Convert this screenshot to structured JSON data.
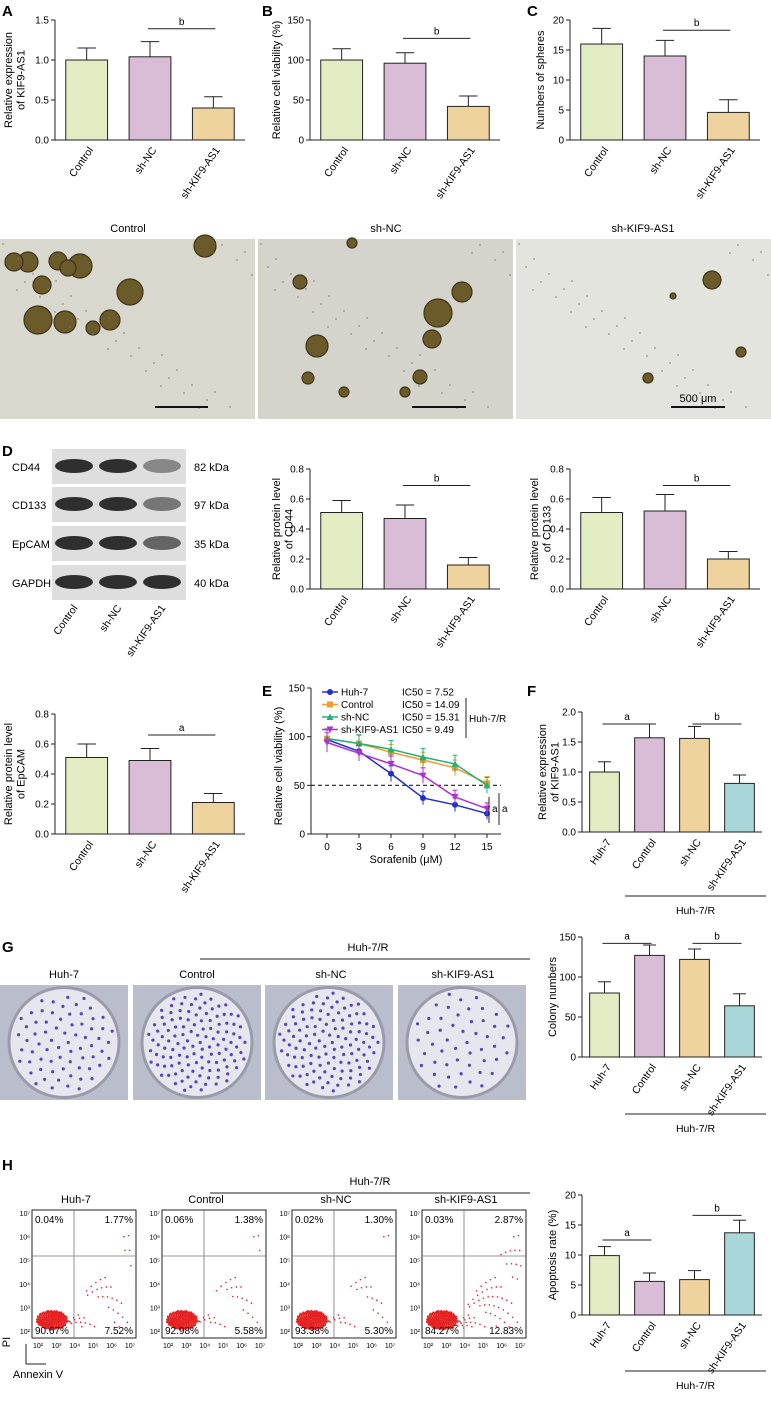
{
  "colors": {
    "green": "#e3ecc3",
    "purple": "#d9bcd6",
    "tan": "#efd39f",
    "teal": "#a9d6d9",
    "axis": "#222222",
    "dot_red": "#e52020",
    "colony_purple": "#5a3fc0"
  },
  "panels": {
    "A": "A",
    "B": "B",
    "C": "C",
    "D": "D",
    "E": "E",
    "F": "F",
    "G": "G",
    "H": "H"
  },
  "sphere_images": {
    "labels": [
      "Control",
      "sh-NC",
      "sh-KIF9-AS1"
    ],
    "scale_bar": "500 μm"
  },
  "western_blot": {
    "bands": [
      {
        "name": "CD44",
        "kda": "82 kDa"
      },
      {
        "name": "CD133",
        "kda": "97 kDa"
      },
      {
        "name": "EpCAM",
        "kda": "35 kDa"
      },
      {
        "name": "GAPDH",
        "kda": "40 kDa"
      }
    ],
    "lanes": [
      "Control",
      "sh-NC",
      "sh-KIF9-AS1"
    ]
  },
  "colony_images": {
    "group_label": "Huh-7/R",
    "labels": [
      "Huh-7",
      "Control",
      "sh-NC",
      "sh-KIF9-AS1"
    ]
  },
  "flow": {
    "group_label": "Huh-7/R",
    "x_label": "Annexin V",
    "y_label": "PI",
    "titles": [
      "Huh-7",
      "Control",
      "sh-NC",
      "sh-KIF9-AS1"
    ],
    "quadrants": [
      {
        "ul": "0.04%",
        "ur": "1.77%",
        "ll": "90.67%",
        "lr": "7.52%"
      },
      {
        "ul": "0.06%",
        "ur": "1.38%",
        "ll": "92.98%",
        "lr": "5.58%"
      },
      {
        "ul": "0.02%",
        "ur": "1.30%",
        "ll": "93.38%",
        "lr": "5.30%"
      },
      {
        "ul": "0.03%",
        "ur": "2.87%",
        "ll": "84.27%",
        "lr": "12.83%"
      }
    ],
    "ticks": [
      "10²",
      "10³",
      "10⁴",
      "10⁵",
      "10⁶",
      "10⁷"
    ]
  },
  "chart_data": [
    {
      "id": "A",
      "type": "bar",
      "categories": [
        "Control",
        "sh-NC",
        "sh-KIF9-AS1"
      ],
      "values": [
        1.0,
        1.04,
        0.4
      ],
      "errors": [
        0.15,
        0.19,
        0.14
      ],
      "colors": [
        "#e3ecc3",
        "#d9bcd6",
        "#efd39f"
      ],
      "ylabel": "Relative expression of KIF9-AS1",
      "ylim": [
        0,
        1.5
      ],
      "ticks": [
        "0.0",
        "0.5",
        "1.0",
        "1.5"
      ],
      "tick_values": [
        0,
        0.5,
        1.0,
        1.5
      ],
      "sig": [
        {
          "from": 1,
          "to": 2,
          "label": "b",
          "y": 1.39
        }
      ]
    },
    {
      "id": "B",
      "type": "bar",
      "categories": [
        "Control",
        "sh-NC",
        "sh-KIF9-AS1"
      ],
      "values": [
        100,
        96,
        42
      ],
      "errors": [
        14,
        13,
        13
      ],
      "colors": [
        "#e3ecc3",
        "#d9bcd6",
        "#efd39f"
      ],
      "ylabel": "Relative cell viability (%)",
      "ylim": [
        0,
        150
      ],
      "ticks": [
        "0",
        "50",
        "100",
        "150"
      ],
      "tick_values": [
        0,
        50,
        100,
        150
      ],
      "sig": [
        {
          "from": 1,
          "to": 2,
          "label": "b",
          "y": 127
        }
      ]
    },
    {
      "id": "C",
      "type": "bar",
      "categories": [
        "Control",
        "sh-NC",
        "sh-KIF9-AS1"
      ],
      "values": [
        16,
        14,
        4.6
      ],
      "errors": [
        2.6,
        2.6,
        2.1
      ],
      "colors": [
        "#e3ecc3",
        "#d9bcd6",
        "#efd39f"
      ],
      "ylabel": "Numbers of spheres",
      "ylim": [
        0,
        20
      ],
      "ticks": [
        "0",
        "5",
        "10",
        "15",
        "20"
      ],
      "tick_values": [
        0,
        5,
        10,
        15,
        20
      ],
      "sig": [
        {
          "from": 1,
          "to": 2,
          "label": "b",
          "y": 18.3
        }
      ]
    },
    {
      "id": "D1",
      "type": "bar",
      "categories": [
        "Control",
        "sh-NC",
        "sh-KIF9-AS1"
      ],
      "values": [
        0.51,
        0.47,
        0.16
      ],
      "errors": [
        0.08,
        0.09,
        0.05
      ],
      "colors": [
        "#e3ecc3",
        "#d9bcd6",
        "#efd39f"
      ],
      "ylabel": "Relative protein level of CD44",
      "ylim": [
        0,
        0.8
      ],
      "ticks": [
        "0.0",
        "0.2",
        "0.4",
        "0.6",
        "0.8"
      ],
      "tick_values": [
        0,
        0.2,
        0.4,
        0.6,
        0.8
      ],
      "sig": [
        {
          "from": 1,
          "to": 2,
          "label": "b",
          "y": 0.69
        }
      ]
    },
    {
      "id": "D2",
      "type": "bar",
      "categories": [
        "Control",
        "sh-NC",
        "sh-KIF9-AS1"
      ],
      "values": [
        0.51,
        0.52,
        0.2
      ],
      "errors": [
        0.1,
        0.11,
        0.05
      ],
      "colors": [
        "#e3ecc3",
        "#d9bcd6",
        "#efd39f"
      ],
      "ylabel": "Relative protein level of CD133",
      "ylim": [
        0,
        0.8
      ],
      "ticks": [
        "0.0",
        "0.2",
        "0.4",
        "0.6",
        "0.8"
      ],
      "tick_values": [
        0,
        0.2,
        0.4,
        0.6,
        0.8
      ],
      "sig": [
        {
          "from": 1,
          "to": 2,
          "label": "b",
          "y": 0.69
        }
      ]
    },
    {
      "id": "D3",
      "type": "bar",
      "categories": [
        "Control",
        "sh-NC",
        "sh-KIF9-AS1"
      ],
      "values": [
        0.51,
        0.49,
        0.21
      ],
      "errors": [
        0.09,
        0.08,
        0.06
      ],
      "colors": [
        "#e3ecc3",
        "#d9bcd6",
        "#efd39f"
      ],
      "ylabel": "Relative protein level of EpCAM",
      "ylim": [
        0,
        0.8
      ],
      "ticks": [
        "0.0",
        "0.2",
        "0.4",
        "0.6",
        "0.8"
      ],
      "tick_values": [
        0,
        0.2,
        0.4,
        0.6,
        0.8
      ],
      "sig": [
        {
          "from": 1,
          "to": 2,
          "label": "a",
          "y": 0.66
        }
      ]
    },
    {
      "id": "E",
      "type": "line",
      "x": [
        0,
        3,
        6,
        9,
        12,
        15
      ],
      "xlabel": "Sorafenib (μM)",
      "ylabel": "Relative cell viability (%)",
      "xlim": [
        0,
        15
      ],
      "ylim": [
        0,
        150
      ],
      "ticks": [
        "0",
        "50",
        "100",
        "150"
      ],
      "tick_values": [
        0,
        50,
        100,
        150
      ],
      "xticks": [
        "0",
        "3",
        "6",
        "9",
        "12",
        "15"
      ],
      "threshold": 50,
      "group_label": "Huh-7/R",
      "sig_labels": [
        "a",
        "a"
      ],
      "series": [
        {
          "name": "Huh-7",
          "ic50": "IC50 = 7.52",
          "color": "#1f2fcc",
          "marker": "circle",
          "values": [
            97,
            85,
            62,
            37,
            30,
            21
          ],
          "errors": [
            10,
            8,
            8,
            7,
            7,
            6
          ]
        },
        {
          "name": "Control",
          "ic50": "IC50 = 14.09",
          "color": "#f39b2a",
          "marker": "square",
          "values": [
            98,
            93,
            84,
            76,
            68,
            52
          ],
          "errors": [
            10,
            8,
            8,
            8,
            8,
            7
          ]
        },
        {
          "name": "sh-NC",
          "ic50": "IC50 = 15.31",
          "color": "#22b07a",
          "marker": "triangle",
          "values": [
            98,
            93,
            87,
            79,
            72,
            50
          ],
          "errors": [
            10,
            9,
            9,
            9,
            9,
            8
          ]
        },
        {
          "name": "sh-KIF9-AS1",
          "ic50": "IC50 = 9.49",
          "color": "#b02fd8",
          "marker": "triangle-down",
          "values": [
            94,
            83,
            72,
            60,
            38,
            26
          ],
          "errors": [
            10,
            8,
            8,
            8,
            7,
            6
          ]
        }
      ]
    },
    {
      "id": "F",
      "type": "bar",
      "categories": [
        "Huh-7",
        "Control",
        "sh-NC",
        "sh-KIF9-AS1"
      ],
      "values": [
        1.0,
        1.57,
        1.56,
        0.81
      ],
      "errors": [
        0.17,
        0.23,
        0.2,
        0.14
      ],
      "colors": [
        "#e3ecc3",
        "#d9bcd6",
        "#efd39f",
        "#a9d6d9"
      ],
      "ylabel": "Relative expression of KIF9-AS1",
      "ylim": [
        0,
        2.0
      ],
      "ticks": [
        "0.0",
        "0.5",
        "1.0",
        "1.5",
        "2.0"
      ],
      "tick_values": [
        0,
        0.5,
        1.0,
        1.5,
        2.0
      ],
      "sig": [
        {
          "from": 0,
          "to": 1,
          "label": "a",
          "y": 1.8
        },
        {
          "from": 2,
          "to": 3,
          "label": "b",
          "y": 1.8
        }
      ],
      "group_label": "Huh-7/R",
      "group_from": 1
    },
    {
      "id": "G",
      "type": "bar",
      "categories": [
        "Huh-7",
        "Control",
        "sh-NC",
        "sh-KIF9-AS1"
      ],
      "values": [
        80,
        127,
        122,
        64
      ],
      "errors": [
        14,
        13,
        13,
        15
      ],
      "colors": [
        "#e3ecc3",
        "#d9bcd6",
        "#efd39f",
        "#a9d6d9"
      ],
      "ylabel": "Colony numbers",
      "ylim": [
        0,
        150
      ],
      "ticks": [
        "0",
        "50",
        "100",
        "150"
      ],
      "tick_values": [
        0,
        50,
        100,
        150
      ],
      "sig": [
        {
          "from": 0,
          "to": 1,
          "label": "a",
          "y": 142
        },
        {
          "from": 2,
          "to": 3,
          "label": "b",
          "y": 142
        }
      ],
      "group_label": "Huh-7/R",
      "group_from": 1
    },
    {
      "id": "H",
      "type": "bar",
      "categories": [
        "Huh-7",
        "Control",
        "sh-NC",
        "sh-KIF9-AS1"
      ],
      "values": [
        9.9,
        5.6,
        5.9,
        13.7
      ],
      "errors": [
        1.5,
        1.4,
        1.5,
        2.1
      ],
      "colors": [
        "#e3ecc3",
        "#d9bcd6",
        "#efd39f",
        "#a9d6d9"
      ],
      "ylabel": "Apoptosis rate (%)",
      "ylim": [
        0,
        20
      ],
      "ticks": [
        "0",
        "5",
        "10",
        "15",
        "20"
      ],
      "tick_values": [
        0,
        5,
        10,
        15,
        20
      ],
      "sig": [
        {
          "from": 0,
          "to": 1,
          "label": "a",
          "y": 12.5
        },
        {
          "from": 2,
          "to": 3,
          "label": "b",
          "y": 16.6
        }
      ],
      "group_label": "Huh-7/R",
      "group_from": 1
    }
  ]
}
